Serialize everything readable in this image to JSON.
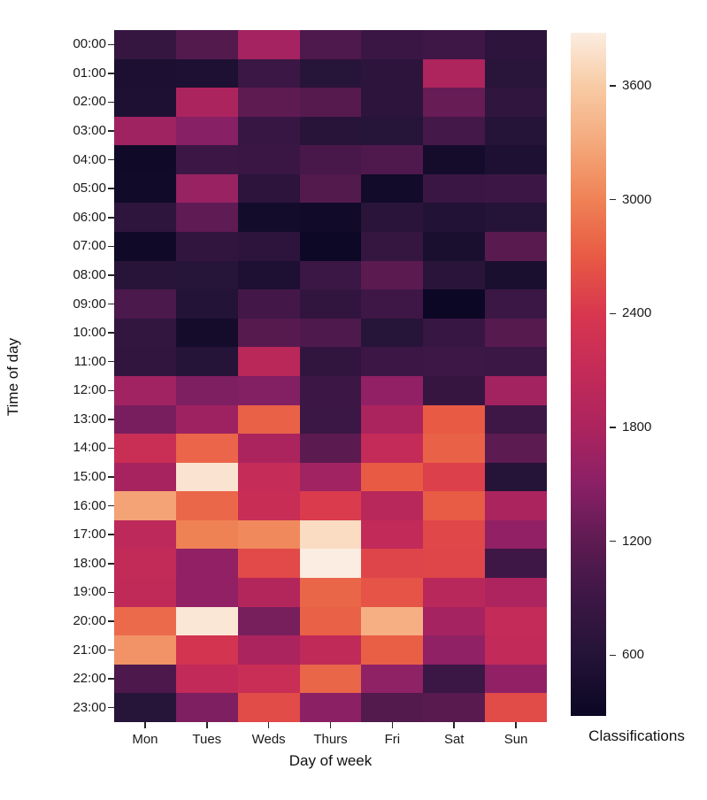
{
  "chart_data": {
    "type": "heatmap",
    "title": "",
    "xlabel": "Day of week",
    "ylabel": "Time of day",
    "x_categories": [
      "Mon",
      "Tues",
      "Weds",
      "Thurs",
      "Fri",
      "Sat",
      "Sun"
    ],
    "y_categories": [
      "00:00",
      "01:00",
      "02:00",
      "03:00",
      "04:00",
      "05:00",
      "06:00",
      "07:00",
      "08:00",
      "09:00",
      "10:00",
      "11:00",
      "12:00",
      "13:00",
      "14:00",
      "15:00",
      "16:00",
      "17:00",
      "18:00",
      "19:00",
      "20:00",
      "21:00",
      "22:00",
      "23:00"
    ],
    "values": [
      [
        810,
        1100,
        1740,
        1060,
        860,
        920,
        700
      ],
      [
        500,
        520,
        880,
        640,
        700,
        1830,
        660
      ],
      [
        520,
        1800,
        1200,
        1140,
        700,
        1260,
        750
      ],
      [
        1690,
        1480,
        850,
        650,
        640,
        970,
        620
      ],
      [
        350,
        900,
        860,
        1000,
        1080,
        410,
        520
      ],
      [
        360,
        1630,
        710,
        1100,
        380,
        860,
        900
      ],
      [
        720,
        1210,
        400,
        370,
        670,
        580,
        620
      ],
      [
        340,
        760,
        700,
        300,
        810,
        490,
        1160
      ],
      [
        650,
        640,
        520,
        880,
        1170,
        670,
        490
      ],
      [
        1030,
        590,
        960,
        760,
        920,
        280,
        870
      ],
      [
        790,
        410,
        1140,
        1060,
        640,
        850,
        1140
      ],
      [
        760,
        630,
        1980,
        780,
        900,
        910,
        870
      ],
      [
        1700,
        1420,
        1450,
        900,
        1560,
        820,
        1720
      ],
      [
        1380,
        1680,
        2750,
        880,
        1800,
        2700,
        930
      ],
      [
        2180,
        2780,
        1790,
        1170,
        2100,
        2760,
        1180
      ],
      [
        1760,
        3800,
        2120,
        1700,
        2700,
        2480,
        630
      ],
      [
        3250,
        2800,
        2160,
        2430,
        1950,
        2710,
        1800
      ],
      [
        2000,
        3000,
        3050,
        3740,
        2060,
        2540,
        1560
      ],
      [
        2080,
        1560,
        2560,
        3880,
        2520,
        2530,
        920
      ],
      [
        2040,
        1560,
        1890,
        2790,
        2650,
        1960,
        1810
      ],
      [
        2820,
        3830,
        1370,
        2760,
        3350,
        1740,
        2100
      ],
      [
        3130,
        2330,
        1790,
        2050,
        2740,
        1550,
        2060
      ],
      [
        1050,
        2060,
        2170,
        2790,
        1540,
        880,
        1560
      ],
      [
        640,
        1410,
        2570,
        1520,
        1090,
        1160,
        2570
      ]
    ],
    "colorbar": {
      "label": "Classifications",
      "tick_labels": [
        "3600",
        "3000",
        "2400",
        "1800",
        "1200",
        "600"
      ],
      "tick_values": [
        3600,
        3000,
        2400,
        1800,
        1200,
        600
      ],
      "vmin": 280,
      "vmax": 3880
    },
    "colormap": {
      "name": "rocket-like",
      "stops": [
        {
          "v": 280,
          "c": "#0B0724"
        },
        {
          "v": 600,
          "c": "#241337"
        },
        {
          "v": 900,
          "c": "#3C1745"
        },
        {
          "v": 1200,
          "c": "#5E1B52"
        },
        {
          "v": 1500,
          "c": "#8A2066"
        },
        {
          "v": 1800,
          "c": "#AC245E"
        },
        {
          "v": 2100,
          "c": "#C42B58"
        },
        {
          "v": 2400,
          "c": "#D8374E"
        },
        {
          "v": 2700,
          "c": "#E85A44"
        },
        {
          "v": 3000,
          "c": "#EF8255"
        },
        {
          "v": 3300,
          "c": "#F4A97C"
        },
        {
          "v": 3600,
          "c": "#F8CBA5"
        },
        {
          "v": 3880,
          "c": "#FBEDE1"
        }
      ]
    },
    "grid": false,
    "legend_position": "right-colorbar"
  }
}
